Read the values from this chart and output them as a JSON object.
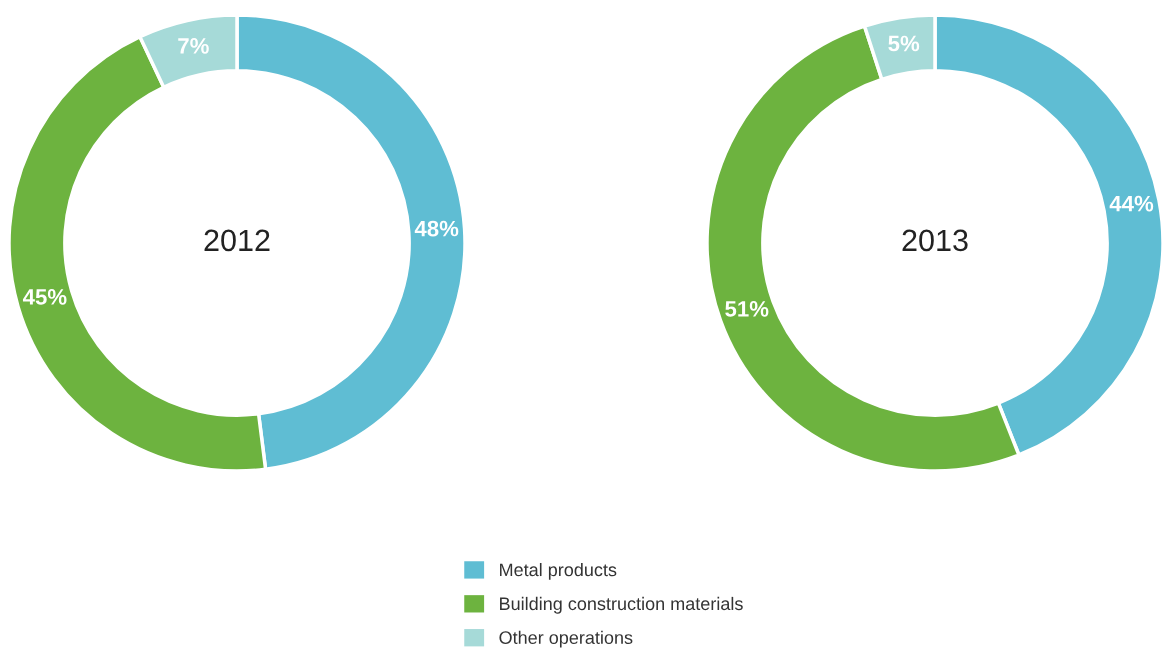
{
  "chart_data": [
    {
      "type": "donut",
      "title": "2012",
      "categories": [
        "Metal products",
        "Building construction materials",
        "Other operations"
      ],
      "values": [
        48,
        45,
        7
      ],
      "value_labels": [
        "48%",
        "45%",
        "7%"
      ],
      "colors": [
        "#5fbdd3",
        "#6db33f",
        "#a6dad8"
      ],
      "legend": "bottom"
    },
    {
      "type": "donut",
      "title": "2013",
      "values": [
        44,
        51,
        5
      ],
      "value_labels": [
        "44%",
        "51%",
        "5%"
      ],
      "colors": [
        "#5fbdd3",
        "#6db33f",
        "#a6dad8"
      ]
    }
  ]
}
